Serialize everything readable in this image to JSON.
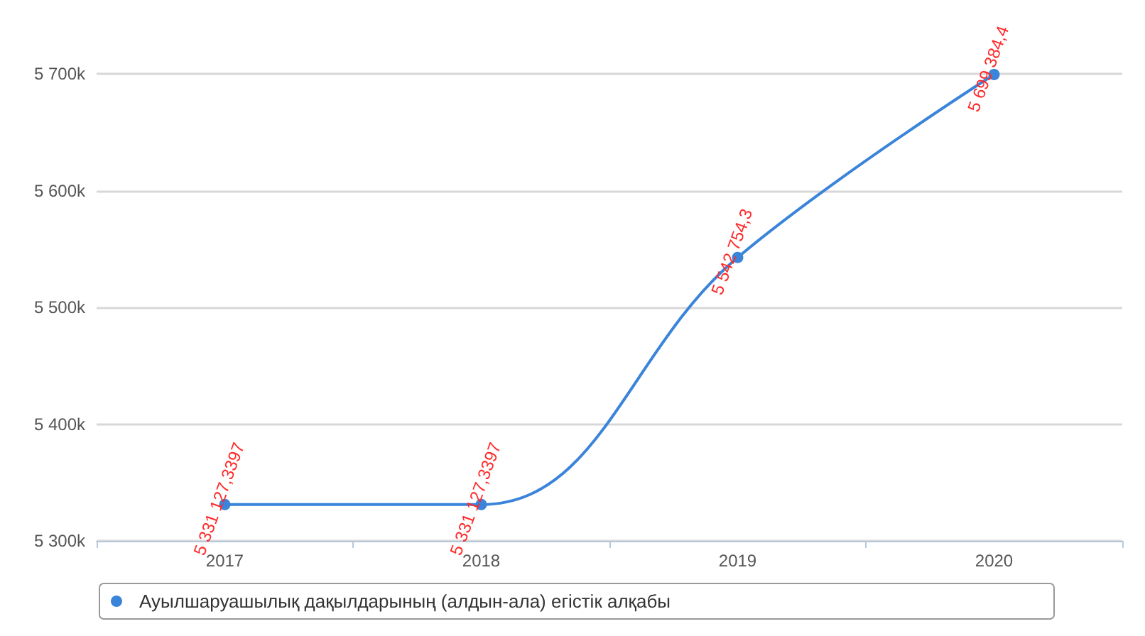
{
  "chart_data": {
    "type": "line",
    "categories": [
      "2017",
      "2018",
      "2019",
      "2020"
    ],
    "series": [
      {
        "name": "Ауылшаруашылық дақылдарының (алдын-ала) егістік алқабы",
        "color": "#3a84d9",
        "values": [
          5331127.3397,
          5331127.3397,
          5542754.3,
          5699384.4
        ],
        "value_labels": [
          "5 331 127,3397",
          "5 331 127,3397",
          "5 542 754,3",
          "5 699 384,4"
        ]
      }
    ],
    "ylim": [
      5300000,
      5700000
    ],
    "yticks": [
      {
        "value": 5300000,
        "label": "5 300k"
      },
      {
        "value": 5400000,
        "label": "5 400k"
      },
      {
        "value": 5500000,
        "label": "5 500k"
      },
      {
        "value": 5600000,
        "label": "5 600k"
      },
      {
        "value": 5700000,
        "label": "5 700k"
      }
    ],
    "grid": "y",
    "legend": "bottom",
    "marker": "circle",
    "line_style": "solid"
  }
}
